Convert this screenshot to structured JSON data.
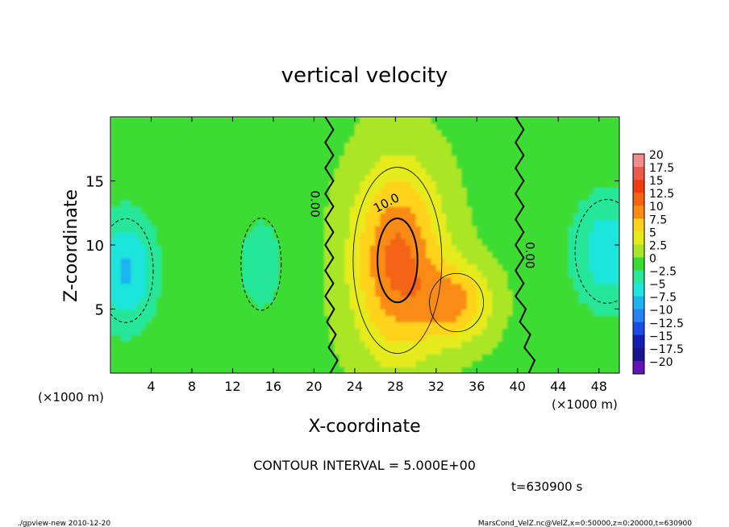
{
  "footer": {
    "left": "./gpview-new   2010-12-20",
    "right": "MarsCond_VelZ.nc@VelZ,x=0:50000,z=0:20000,t=630900"
  },
  "chart_data": {
    "type": "heatmap",
    "title": "vertical velocity",
    "xlabel": "X-coordinate",
    "ylabel": "Z-coordinate",
    "x_unit_label": "(×1000 m)",
    "xlim": [
      0,
      50
    ],
    "ylim": [
      0,
      20
    ],
    "x_ticks": [
      4,
      8,
      12,
      16,
      20,
      24,
      28,
      32,
      36,
      40,
      44,
      48
    ],
    "y_ticks": [
      5,
      10,
      15
    ],
    "contour_interval_text": "CONTOUR INTERVAL = 5.000E+00",
    "time_text": "t=630900 s",
    "contour_labels": [
      {
        "text": "0.00",
        "x": 19.7,
        "z": 13.2,
        "rotate": 90
      },
      {
        "text": "10.0",
        "x": 27.3,
        "z": 13.0,
        "rotate": -28
      },
      {
        "text": "0.00",
        "x": 40.8,
        "z": 9.2,
        "rotate": 90
      }
    ],
    "colorbar": {
      "labels": [
        "20",
        "17.5",
        "15",
        "12.5",
        "10",
        "7.5",
        "5",
        "2.5",
        "0",
        "−2.5",
        "−5",
        "−7.5",
        "−10",
        "−12.5",
        "−15",
        "−17.5",
        "−20"
      ],
      "colors": [
        "#f08c8c",
        "#ee5a4a",
        "#f03c14",
        "#f46412",
        "#fa8c14",
        "#ffd21e",
        "#e6eb1e",
        "#aae628",
        "#3cdc32",
        "#28e69a",
        "#1ee6dc",
        "#1eb4f0",
        "#2882f0",
        "#1e4be6",
        "#141eb4",
        "#19148c",
        "#6414b4"
      ]
    },
    "field": {
      "background": 0.5,
      "features": [
        {
          "value": 11.5,
          "x": 28.2,
          "z": 8.8,
          "rx": 4.5,
          "rz": 7.5
        },
        {
          "value": 8.0,
          "x": 34.0,
          "z": 5.5,
          "rx": 3.5,
          "rz": 3.0
        },
        {
          "value": -7.0,
          "x": 1.5,
          "z": 8.0,
          "rx": 3.0,
          "rz": 4.5
        },
        {
          "value": -6.0,
          "x": 48.8,
          "z": 9.5,
          "rx": 3.5,
          "rz": 4.5
        },
        {
          "value": -3.5,
          "x": 14.8,
          "z": 8.5,
          "rx": 2.2,
          "rz": 4.0
        }
      ]
    }
  }
}
